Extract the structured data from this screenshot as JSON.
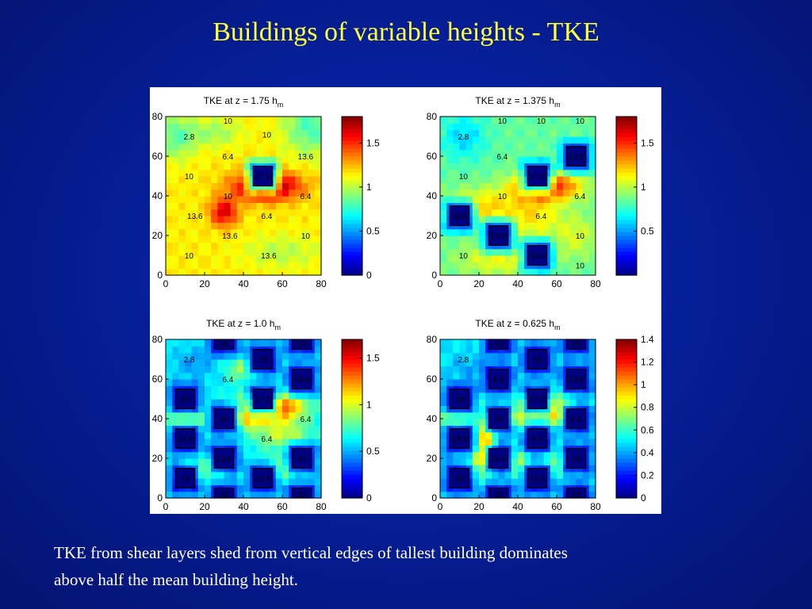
{
  "slide": {
    "title": "Buildings of variable heights - TKE",
    "caption_line1": "TKE from shear layers shed from vertical edges of tallest building dominates",
    "caption_line2": "above half the mean building height."
  },
  "colors": {
    "background": "#061f9a",
    "title": "#ffff33",
    "caption": "#ffffff",
    "building_fill": "#000080"
  },
  "chart_data": [
    {
      "type": "heatmap",
      "title": "TKE at z = 1.75 h",
      "title_sub": "m",
      "xlim": [
        0,
        80
      ],
      "ylim": [
        0,
        80
      ],
      "x_ticks": [
        0,
        20,
        40,
        60,
        80
      ],
      "y_ticks": [
        0,
        20,
        40,
        60,
        80
      ],
      "colorbar": {
        "range": [
          0,
          1.8
        ],
        "ticks": [
          0,
          0.5,
          1,
          1.5
        ]
      },
      "base_level": 1.15,
      "blobs": [
        {
          "x": 52,
          "y": 45,
          "sx": 12,
          "sy": 5,
          "v": 0.7
        },
        {
          "x": 30,
          "y": 32,
          "sx": 5,
          "sy": 5,
          "v": 0.5
        },
        {
          "x": 75,
          "y": 75,
          "sx": 10,
          "sy": 10,
          "v": -0.35
        },
        {
          "x": 5,
          "y": 70,
          "sx": 7,
          "sy": 8,
          "v": -0.3
        },
        {
          "x": 25,
          "y": 72,
          "sx": 10,
          "sy": 5,
          "v": -0.2
        },
        {
          "x": 60,
          "y": 12,
          "sx": 14,
          "sy": 6,
          "v": -0.15
        }
      ],
      "buildings": [
        {
          "x": 45,
          "y": 45,
          "w": 10,
          "h": 10,
          "label": "17.2"
        }
      ],
      "labels": [
        {
          "x": 12,
          "y": 70,
          "text": "2.8"
        },
        {
          "x": 32,
          "y": 78,
          "text": "10"
        },
        {
          "x": 52,
          "y": 71,
          "text": "10"
        },
        {
          "x": 32,
          "y": 60,
          "text": "6.4"
        },
        {
          "x": 72,
          "y": 60,
          "text": "13.6"
        },
        {
          "x": 12,
          "y": 50,
          "text": "10"
        },
        {
          "x": 32,
          "y": 40,
          "text": "10"
        },
        {
          "x": 72,
          "y": 40,
          "text": "6.4"
        },
        {
          "x": 15,
          "y": 30,
          "text": "13.6"
        },
        {
          "x": 52,
          "y": 30,
          "text": "6.4"
        },
        {
          "x": 33,
          "y": 20,
          "text": "13.6"
        },
        {
          "x": 72,
          "y": 20,
          "text": "10"
        },
        {
          "x": 12,
          "y": 10,
          "text": "10"
        },
        {
          "x": 53,
          "y": 10,
          "text": "13.6"
        }
      ]
    },
    {
      "type": "heatmap",
      "title": "TKE at z = 1.375 h",
      "title_sub": "m",
      "xlim": [
        0,
        80
      ],
      "ylim": [
        0,
        80
      ],
      "x_ticks": [
        0,
        20,
        40,
        60,
        80
      ],
      "y_ticks": [
        0,
        20,
        40,
        60,
        80
      ],
      "colorbar": {
        "range": [
          0,
          1.8
        ],
        "ticks": [
          0.5,
          1,
          1.5
        ]
      },
      "base_level": 0.85,
      "blobs": [
        {
          "x": 55,
          "y": 45,
          "sx": 12,
          "sy": 5,
          "v": 0.75
        },
        {
          "x": 22,
          "y": 35,
          "sx": 12,
          "sy": 6,
          "v": 0.35
        },
        {
          "x": 48,
          "y": 30,
          "sx": 10,
          "sy": 8,
          "v": 0.3
        },
        {
          "x": 70,
          "y": 20,
          "sx": 8,
          "sy": 8,
          "v": 0.2
        },
        {
          "x": 12,
          "y": 70,
          "sx": 8,
          "sy": 8,
          "v": -0.25
        },
        {
          "x": 30,
          "y": 8,
          "sx": 15,
          "sy": 6,
          "v": 0.25
        }
      ],
      "buildings": [
        {
          "x": 45,
          "y": 45,
          "w": 10,
          "h": 10,
          "label": "17.2"
        },
        {
          "x": 65,
          "y": 55,
          "w": 10,
          "h": 10,
          "label": "13.6"
        },
        {
          "x": 5,
          "y": 25,
          "w": 10,
          "h": 10,
          "label": "13.6"
        },
        {
          "x": 25,
          "y": 15,
          "w": 10,
          "h": 10,
          "label": "13.6"
        },
        {
          "x": 45,
          "y": 5,
          "w": 10,
          "h": 10,
          "label": "13.6"
        }
      ],
      "labels": [
        {
          "x": 12,
          "y": 70,
          "text": "2.8"
        },
        {
          "x": 32,
          "y": 78,
          "text": "10"
        },
        {
          "x": 52,
          "y": 78,
          "text": "10"
        },
        {
          "x": 72,
          "y": 78,
          "text": "10"
        },
        {
          "x": 32,
          "y": 60,
          "text": "6.4"
        },
        {
          "x": 12,
          "y": 50,
          "text": "10"
        },
        {
          "x": 32,
          "y": 40,
          "text": "10"
        },
        {
          "x": 72,
          "y": 40,
          "text": "6.4"
        },
        {
          "x": 52,
          "y": 30,
          "text": "6.4"
        },
        {
          "x": 72,
          "y": 20,
          "text": "10"
        },
        {
          "x": 12,
          "y": 10,
          "text": "10"
        },
        {
          "x": 72,
          "y": 5,
          "text": "10"
        }
      ]
    },
    {
      "type": "heatmap",
      "title": "TKE at z = 1.0 h",
      "title_sub": "m",
      "xlim": [
        0,
        80
      ],
      "ylim": [
        0,
        80
      ],
      "x_ticks": [
        0,
        20,
        40,
        60,
        80
      ],
      "y_ticks": [
        0,
        20,
        40,
        60,
        80
      ],
      "colorbar": {
        "range": [
          0,
          1.7
        ],
        "ticks": [
          0,
          0.5,
          1,
          1.5
        ]
      },
      "base_level": 0.62,
      "blobs": [
        {
          "x": 55,
          "y": 46,
          "sx": 11,
          "sy": 5,
          "v": 0.9
        },
        {
          "x": 10,
          "y": 40,
          "sx": 8,
          "sy": 4,
          "v": 0.45
        },
        {
          "x": 40,
          "y": 40,
          "sx": 6,
          "sy": 4,
          "v": 0.4
        },
        {
          "x": 60,
          "y": 32,
          "sx": 10,
          "sy": 5,
          "v": 0.35
        },
        {
          "x": 20,
          "y": 15,
          "sx": 8,
          "sy": 4,
          "v": 0.4
        },
        {
          "x": 60,
          "y": 15,
          "sx": 8,
          "sy": 4,
          "v": 0.35
        },
        {
          "x": 40,
          "y": 65,
          "sx": 6,
          "sy": 4,
          "v": 0.3
        },
        {
          "x": 15,
          "y": 68,
          "sx": 8,
          "sy": 6,
          "v": -0.15
        }
      ],
      "buildings": [
        {
          "x": 25,
          "y": 75,
          "w": 10,
          "h": 10,
          "label": "10"
        },
        {
          "x": 45,
          "y": 65,
          "w": 10,
          "h": 10,
          "label": "10"
        },
        {
          "x": 65,
          "y": 75,
          "w": 10,
          "h": 10,
          "label": "10"
        },
        {
          "x": 65,
          "y": 55,
          "w": 10,
          "h": 10,
          "label": "13.6"
        },
        {
          "x": 5,
          "y": 45,
          "w": 10,
          "h": 10,
          "label": "10"
        },
        {
          "x": 45,
          "y": 45,
          "w": 10,
          "h": 10,
          "label": "17.2"
        },
        {
          "x": 25,
          "y": 35,
          "w": 10,
          "h": 10,
          "label": "10"
        },
        {
          "x": 5,
          "y": 25,
          "w": 10,
          "h": 10,
          "label": "13.6"
        },
        {
          "x": 25,
          "y": 15,
          "w": 10,
          "h": 10,
          "label": "13.6"
        },
        {
          "x": 65,
          "y": 15,
          "w": 10,
          "h": 10,
          "label": "10"
        },
        {
          "x": 5,
          "y": 5,
          "w": 10,
          "h": 10,
          "label": "10"
        },
        {
          "x": 45,
          "y": 5,
          "w": 10,
          "h": 10,
          "label": "13.6"
        },
        {
          "x": 25,
          "y": -5,
          "w": 10,
          "h": 10,
          "label": "10"
        },
        {
          "x": 65,
          "y": -5,
          "w": 10,
          "h": 10,
          "label": "10"
        }
      ],
      "labels": [
        {
          "x": 12,
          "y": 70,
          "text": "2.8"
        },
        {
          "x": 32,
          "y": 60,
          "text": "6.4"
        },
        {
          "x": 72,
          "y": 40,
          "text": "6.4"
        },
        {
          "x": 52,
          "y": 30,
          "text": "6.4"
        }
      ]
    },
    {
      "type": "heatmap",
      "title": "TKE at z = 0.625 h",
      "title_sub": "m",
      "xlim": [
        0,
        80
      ],
      "ylim": [
        0,
        80
      ],
      "x_ticks": [
        0,
        20,
        40,
        60,
        80
      ],
      "y_ticks": [
        0,
        20,
        40,
        60,
        80
      ],
      "colorbar": {
        "range": [
          0,
          1.4
        ],
        "ticks": [
          0,
          0.2,
          0.4,
          0.6,
          0.8,
          1,
          1.2,
          1.4
        ]
      },
      "base_level": 0.5,
      "blobs": [
        {
          "x": 53,
          "y": 47,
          "sx": 10,
          "sy": 5,
          "v": 0.55
        },
        {
          "x": 24,
          "y": 30,
          "sx": 3,
          "sy": 10,
          "v": 0.7
        },
        {
          "x": 8,
          "y": 40,
          "sx": 7,
          "sy": 4,
          "v": 0.35
        },
        {
          "x": 40,
          "y": 40,
          "sx": 5,
          "sy": 4,
          "v": 0.35
        },
        {
          "x": 60,
          "y": 40,
          "sx": 5,
          "sy": 4,
          "v": 0.3
        },
        {
          "x": 20,
          "y": 18,
          "sx": 5,
          "sy": 5,
          "v": 0.35
        },
        {
          "x": 40,
          "y": 18,
          "sx": 5,
          "sy": 5,
          "v": 0.35
        },
        {
          "x": 60,
          "y": 18,
          "sx": 5,
          "sy": 5,
          "v": 0.3
        },
        {
          "x": 15,
          "y": 65,
          "sx": 8,
          "sy": 5,
          "v": -0.1
        }
      ],
      "buildings": [
        {
          "x": 25,
          "y": 75,
          "w": 10,
          "h": 10,
          "label": "10"
        },
        {
          "x": 45,
          "y": 65,
          "w": 10,
          "h": 10,
          "label": "10"
        },
        {
          "x": 65,
          "y": 75,
          "w": 10,
          "h": 10,
          "label": "10"
        },
        {
          "x": 25,
          "y": 55,
          "w": 10,
          "h": 10,
          "label": "6.4"
        },
        {
          "x": 65,
          "y": 55,
          "w": 10,
          "h": 10,
          "label": "13.6"
        },
        {
          "x": 5,
          "y": 45,
          "w": 10,
          "h": 10,
          "label": "10"
        },
        {
          "x": 45,
          "y": 45,
          "w": 10,
          "h": 10,
          "label": "17.2"
        },
        {
          "x": 25,
          "y": 35,
          "w": 10,
          "h": 10,
          "label": "10"
        },
        {
          "x": 65,
          "y": 35,
          "w": 10,
          "h": 10,
          "label": "6.4"
        },
        {
          "x": 5,
          "y": 25,
          "w": 10,
          "h": 10,
          "label": "13.6"
        },
        {
          "x": 45,
          "y": 25,
          "w": 10,
          "h": 10,
          "label": "6.4"
        },
        {
          "x": 25,
          "y": 15,
          "w": 10,
          "h": 10,
          "label": "13.6"
        },
        {
          "x": 65,
          "y": 15,
          "w": 10,
          "h": 10,
          "label": "10"
        },
        {
          "x": 5,
          "y": 5,
          "w": 10,
          "h": 10,
          "label": "10"
        },
        {
          "x": 45,
          "y": 5,
          "w": 10,
          "h": 10,
          "label": "13.6"
        },
        {
          "x": 25,
          "y": -5,
          "w": 10,
          "h": 10,
          "label": "10"
        },
        {
          "x": 65,
          "y": -5,
          "w": 10,
          "h": 10,
          "label": "10"
        }
      ],
      "labels": [
        {
          "x": 12,
          "y": 70,
          "text": "2.8"
        }
      ]
    }
  ]
}
